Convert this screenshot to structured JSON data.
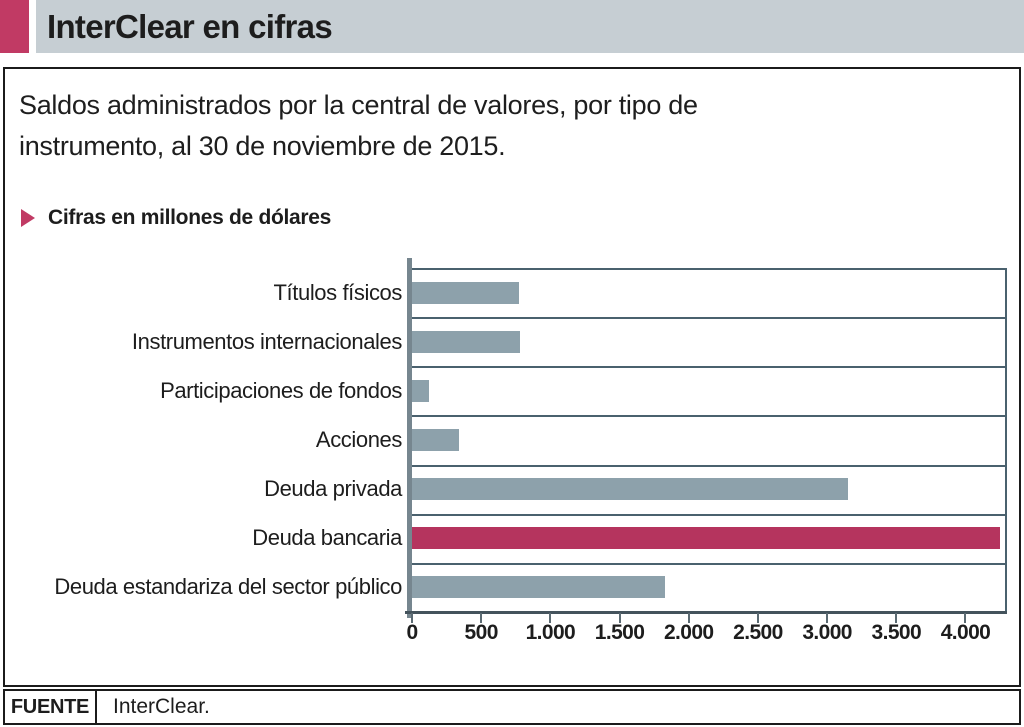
{
  "header": {
    "title": "InterClear en cifras",
    "accent_color": "#c13a64",
    "band_color": "#c6ced3"
  },
  "subtitle": "Saldos administrados por la central de valores, por tipo de\ninstrumento, al 30 de noviembre de 2015.",
  "note": "Cifras en millones de dólares",
  "chart_data": {
    "type": "bar",
    "orientation": "horizontal",
    "title": "Saldos administrados por la central de valores, por tipo de instrumento, al 30 de noviembre de 2015",
    "unit_note": "Cifras en millones de dólares",
    "categories": [
      "Títulos físicos",
      "Instrumentos internacionales",
      "Participaciones de fondos",
      "Acciones",
      "Deuda privada",
      "Deuda bancaria",
      "Deuda estandariza del sector público"
    ],
    "values": [
      770,
      780,
      125,
      340,
      3150,
      4250,
      1825
    ],
    "highlight_index": 5,
    "xlim": [
      0,
      4300
    ],
    "xticks": [
      0,
      500,
      1000,
      1500,
      2000,
      2500,
      3000,
      3500,
      4000
    ],
    "xtick_labels": [
      "0",
      "500",
      "1.000",
      "1.500",
      "2.000",
      "2.500",
      "3.000",
      "3.500",
      "4.000"
    ],
    "bar_color": "#8da1ab",
    "highlight_color": "#b5345e",
    "separator_color": "#4a616e",
    "grid": "row-separators",
    "legend": "none"
  },
  "footer": {
    "label": "FUENTE",
    "source": "InterClear."
  }
}
